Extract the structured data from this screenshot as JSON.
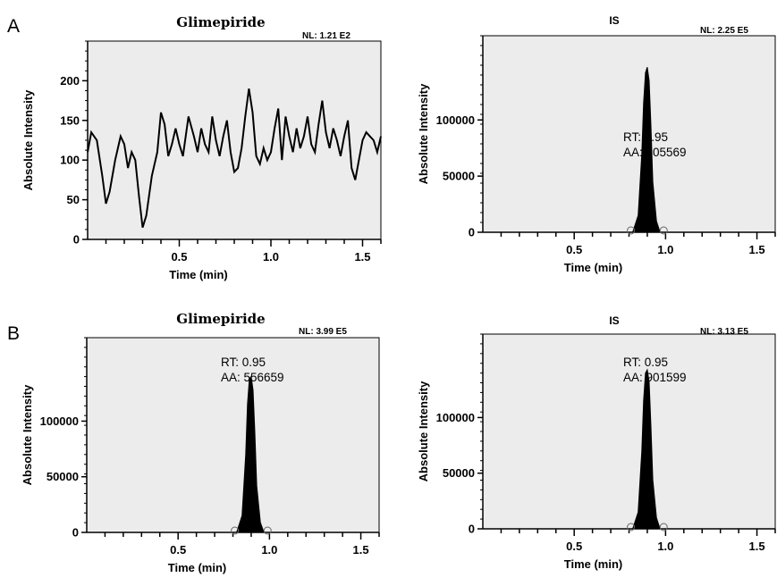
{
  "panel_labels": [
    "A",
    "B"
  ],
  "chart_data": [
    {
      "type": "line",
      "title": "Glimepiride",
      "nl": "NL: 1.21 E2",
      "xlabel": "Time (min)",
      "ylabel": "Absolute Intensity",
      "xlim": [
        0,
        1.6
      ],
      "ylim": [
        0,
        250
      ],
      "xticks": [
        "0.5",
        "1.0",
        "1.5"
      ],
      "yticks": [
        "0",
        "50",
        "100",
        "150",
        "200"
      ],
      "series": [
        {
          "x": [
            0.0,
            0.02,
            0.05,
            0.08,
            0.1,
            0.12,
            0.15,
            0.18,
            0.2,
            0.22,
            0.24,
            0.26,
            0.28,
            0.3,
            0.32,
            0.35,
            0.38,
            0.4,
            0.42,
            0.44,
            0.46,
            0.48,
            0.5,
            0.52,
            0.55,
            0.58,
            0.6,
            0.62,
            0.64,
            0.66,
            0.68,
            0.7,
            0.72,
            0.74,
            0.76,
            0.78,
            0.8,
            0.82,
            0.84,
            0.86,
            0.88,
            0.9,
            0.92,
            0.94,
            0.96,
            0.98,
            1.0,
            1.02,
            1.04,
            1.06,
            1.08,
            1.1,
            1.12,
            1.14,
            1.16,
            1.18,
            1.2,
            1.22,
            1.24,
            1.26,
            1.28,
            1.3,
            1.32,
            1.34,
            1.36,
            1.38,
            1.4,
            1.42,
            1.44,
            1.46,
            1.48,
            1.5,
            1.52,
            1.54,
            1.56,
            1.58,
            1.6
          ],
          "y": [
            110,
            135,
            125,
            80,
            45,
            60,
            100,
            130,
            120,
            90,
            110,
            100,
            55,
            15,
            30,
            80,
            110,
            160,
            145,
            105,
            120,
            140,
            120,
            105,
            155,
            130,
            110,
            140,
            120,
            110,
            155,
            125,
            105,
            130,
            150,
            110,
            85,
            90,
            115,
            155,
            190,
            160,
            105,
            95,
            115,
            100,
            110,
            140,
            165,
            100,
            155,
            130,
            110,
            140,
            115,
            130,
            155,
            120,
            110,
            145,
            175,
            135,
            115,
            140,
            125,
            105,
            130,
            150,
            90,
            75,
            100,
            125,
            135,
            130,
            125,
            110,
            130
          ]
        }
      ]
    },
    {
      "type": "area",
      "title": "IS",
      "nl": "NL: 2.25 E5",
      "xlabel": "Time (min)",
      "ylabel": "Absolute Intensity",
      "xlim": [
        0,
        1.6
      ],
      "ylim": [
        0,
        175000
      ],
      "xticks": [
        "0.5",
        "1.0",
        "1.5"
      ],
      "yticks": [
        "0",
        "50000",
        "100000"
      ],
      "annotation": [
        "RT: 0.95",
        "AA: 905569"
      ],
      "series": [
        {
          "x": [
            0.82,
            0.85,
            0.87,
            0.88,
            0.89,
            0.9,
            0.91,
            0.92,
            0.93,
            0.95,
            0.97
          ],
          "y": [
            0,
            15000,
            70000,
            115000,
            142000,
            147000,
            135000,
            95000,
            45000,
            10000,
            0
          ]
        }
      ]
    },
    {
      "type": "area",
      "title": "Glimepiride",
      "nl": "NL: 3.99 E5",
      "xlabel": "Time (min)",
      "ylabel": "Absolute Intensity",
      "xlim": [
        0,
        1.6
      ],
      "ylim": [
        0,
        175000
      ],
      "xticks": [
        "0.5",
        "1.0",
        "1.5"
      ],
      "yticks": [
        "0",
        "50000",
        "100000"
      ],
      "annotation": [
        "RT: 0.95",
        "AA: 556659"
      ],
      "series": [
        {
          "x": [
            0.82,
            0.85,
            0.87,
            0.88,
            0.89,
            0.9,
            0.91,
            0.92,
            0.93,
            0.95,
            0.97
          ],
          "y": [
            0,
            15000,
            70000,
            115000,
            138000,
            140000,
            128000,
            90000,
            42000,
            9000,
            0
          ]
        }
      ]
    },
    {
      "type": "area",
      "title": "IS",
      "nl": "NL: 3.13 E5",
      "xlabel": "Time (min)",
      "ylabel": "Absolute Intensity",
      "xlim": [
        0,
        1.6
      ],
      "ylim": [
        0,
        175000
      ],
      "xticks": [
        "0.5",
        "1.0",
        "1.5"
      ],
      "yticks": [
        "0",
        "50000",
        "100000"
      ],
      "annotation": [
        "RT: 0.95",
        "AA: 901599"
      ],
      "series": [
        {
          "x": [
            0.82,
            0.85,
            0.87,
            0.88,
            0.89,
            0.9,
            0.91,
            0.92,
            0.93,
            0.95,
            0.97
          ],
          "y": [
            0,
            15000,
            70000,
            115000,
            140000,
            143000,
            132000,
            92000,
            44000,
            10000,
            0
          ]
        }
      ]
    }
  ]
}
